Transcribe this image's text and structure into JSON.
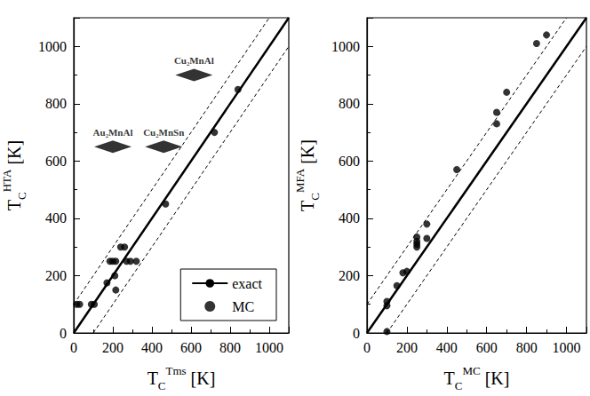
{
  "chart_data": [
    {
      "type": "scatter",
      "xlabel": {
        "text": "T",
        "sub": "C",
        "sup": "Tms",
        "unit": "[K]"
      },
      "ylabel": {
        "text": "T",
        "sub": "C",
        "sup": "HTA",
        "unit": "[K]"
      },
      "xlim": [
        0,
        1100
      ],
      "ylim": [
        0,
        1100
      ],
      "xticks": [
        0,
        200,
        400,
        600,
        800,
        1000
      ],
      "yticks": [
        0,
        200,
        400,
        600,
        800,
        1000
      ],
      "legend": "lower right",
      "series": [
        {
          "name": "exact",
          "type": "line",
          "line_style": "solid",
          "color": "#000000",
          "x": [
            0,
            1100
          ],
          "values": [
            0,
            1100
          ]
        },
        {
          "type": "line",
          "line_style": "dashed",
          "color": "#000000",
          "x": [
            0,
            1000
          ],
          "values": [
            100,
            1100
          ]
        },
        {
          "type": "line",
          "line_style": "dashed",
          "color": "#000000",
          "x": [
            100,
            1100
          ],
          "values": [
            0,
            1000
          ]
        },
        {
          "name": "MC",
          "type": "scatter",
          "marker": "circle",
          "color": "#000000",
          "x": [
            15,
            30,
            90,
            105,
            170,
            185,
            200,
            215,
            210,
            215,
            240,
            260,
            270,
            290,
            320,
            470,
            720,
            840
          ],
          "values": [
            100,
            100,
            100,
            100,
            175,
            250,
            250,
            250,
            200,
            150,
            300,
            300,
            250,
            250,
            250,
            450,
            700,
            850
          ]
        },
        {
          "type": "scatter",
          "marker": "diamond",
          "color": "#000000",
          "x": [
            200,
            460,
            615
          ],
          "values": [
            650,
            650,
            900
          ],
          "labels": [
            "Au₂MnAl",
            "Cu₂MnSn",
            "Cu₂MnAl"
          ]
        }
      ]
    },
    {
      "type": "scatter",
      "xlabel": {
        "text": "T",
        "sub": "C",
        "sup": "MC",
        "unit": "[K]"
      },
      "ylabel": {
        "text": "T",
        "sub": "C",
        "sup": "MFA",
        "unit": "[K]"
      },
      "xlim": [
        0,
        1100
      ],
      "ylim": [
        0,
        1100
      ],
      "xticks": [
        0,
        200,
        400,
        600,
        800,
        1000
      ],
      "yticks": [
        0,
        200,
        400,
        600,
        800,
        1000
      ],
      "series": [
        {
          "type": "line",
          "line_style": "solid",
          "color": "#000000",
          "x": [
            0,
            1100
          ],
          "values": [
            0,
            1100
          ]
        },
        {
          "type": "line",
          "line_style": "dashed",
          "color": "#000000",
          "x": [
            0,
            1000
          ],
          "values": [
            100,
            1100
          ]
        },
        {
          "type": "line",
          "line_style": "dashed",
          "color": "#000000",
          "x": [
            100,
            1100
          ],
          "values": [
            0,
            1000
          ]
        },
        {
          "type": "scatter",
          "marker": "circle",
          "color": "#000000",
          "x": [
            100,
            100,
            100,
            150,
            180,
            200,
            250,
            250,
            250,
            250,
            300,
            300,
            450,
            650,
            650,
            700,
            850,
            900
          ],
          "values": [
            5,
            95,
            110,
            165,
            210,
            215,
            300,
            310,
            320,
            335,
            330,
            380,
            570,
            730,
            770,
            840,
            1010,
            1040
          ]
        }
      ]
    }
  ]
}
